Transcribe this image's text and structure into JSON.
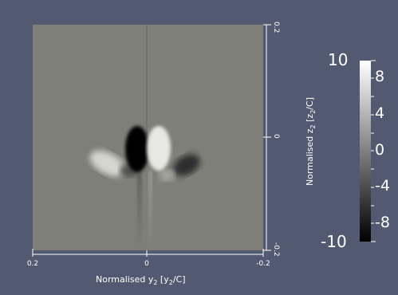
{
  "plot": {
    "x_axis": {
      "title_prefix": "Normalised y",
      "title_sub": "2",
      "title_mid": " [y",
      "title_sub2": "2",
      "title_suffix": "/C]",
      "ticks": [
        "0.2",
        "0",
        "-0.2"
      ]
    },
    "y_axis": {
      "title_prefix": "Normalised z",
      "title_sub": "2",
      "title_mid": " [z",
      "title_sub2": "2",
      "title_suffix": "/C]",
      "ticks": [
        "0.2",
        "0",
        "-0.2"
      ]
    }
  },
  "colorbar": {
    "max_label": "10",
    "min_label": "-10",
    "ticks": [
      "8",
      "4",
      "0",
      "-4",
      "-8"
    ],
    "colormap": "grayscale",
    "top_color": "#ffffff",
    "bottom_color": "#000000"
  },
  "colors": {
    "background": "#525a72",
    "plot_background": "#7f7f79"
  }
}
